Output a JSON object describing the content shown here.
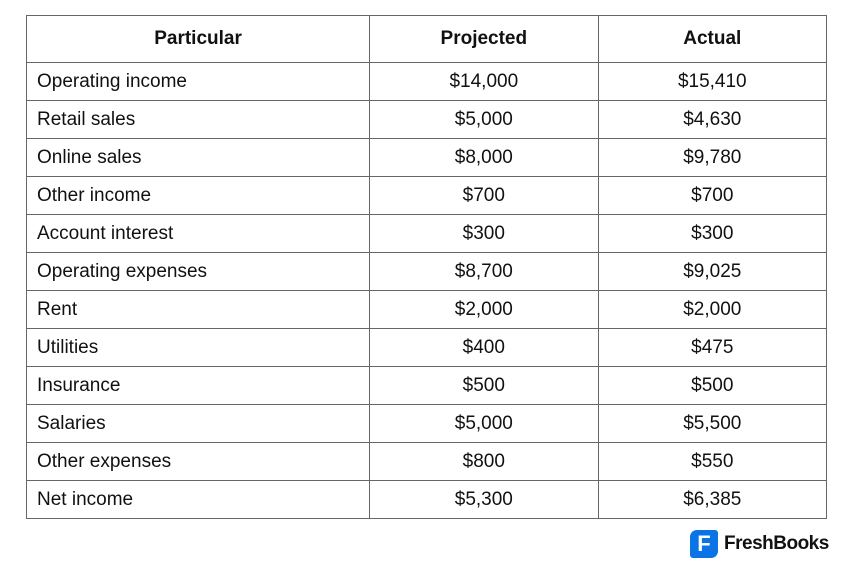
{
  "table": {
    "headers": [
      "Particular",
      "Projected",
      "Actual"
    ],
    "rows": [
      [
        "Operating income",
        "$14,000",
        "$15,410"
      ],
      [
        "Retail sales",
        "$5,000",
        "$4,630"
      ],
      [
        "Online sales",
        "$8,000",
        "$9,780"
      ],
      [
        "Other income",
        "$700",
        "$700"
      ],
      [
        "Account interest",
        "$300",
        "$300"
      ],
      [
        "Operating expenses",
        "$8,700",
        "$9,025"
      ],
      [
        "Rent",
        "$2,000",
        "$2,000"
      ],
      [
        "Utilities",
        "$400",
        "$475"
      ],
      [
        "Insurance",
        "$500",
        "$500"
      ],
      [
        "Salaries",
        "$5,000",
        "$5,500"
      ],
      [
        "Other expenses",
        "$800",
        "$550"
      ],
      [
        "Net income",
        "$5,300",
        "$6,385"
      ]
    ]
  },
  "brand": {
    "name": "FreshBooks",
    "mark": "F",
    "color": "#0a74e6"
  }
}
